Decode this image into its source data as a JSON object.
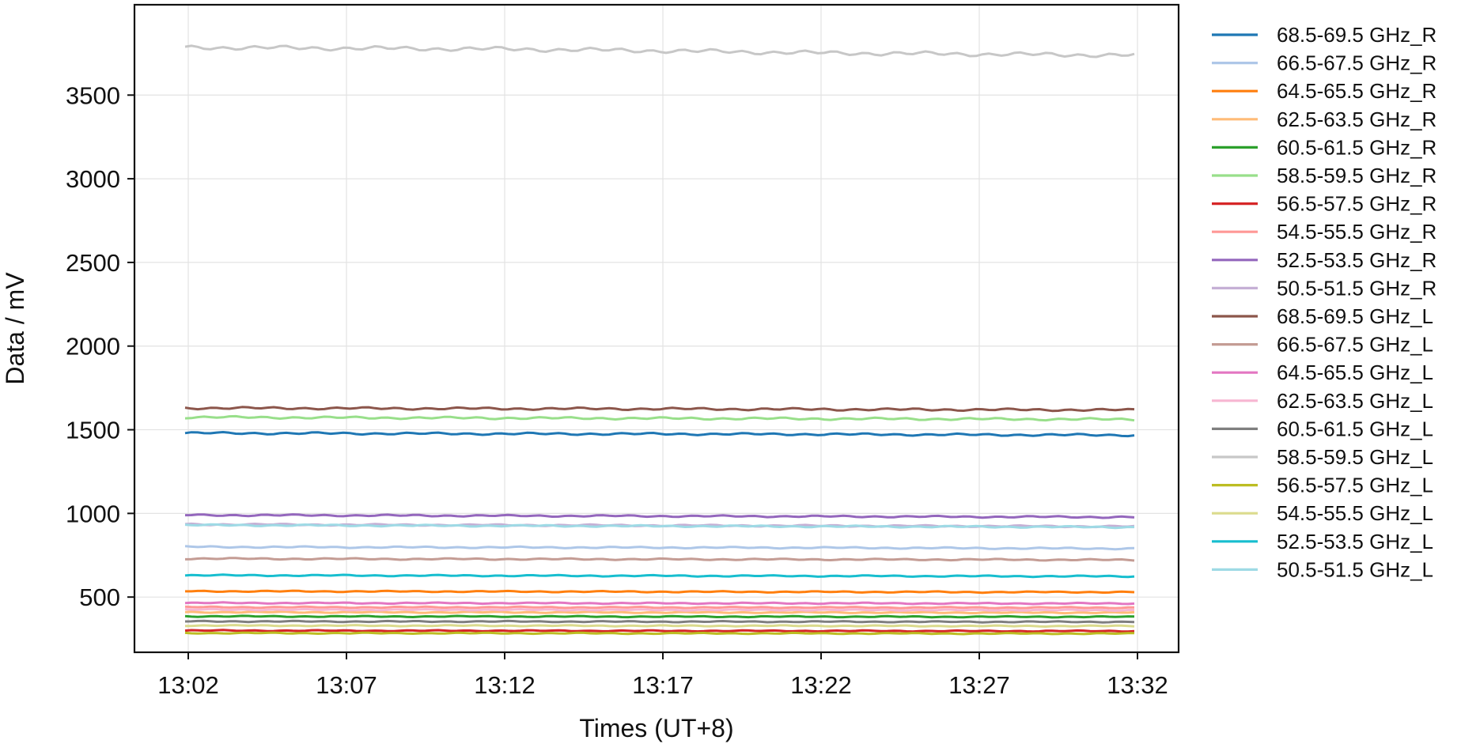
{
  "chart_data": {
    "type": "line",
    "xlabel": "Times (UT+8)",
    "ylabel": "Data / mV",
    "x_ticks": [
      "13:02",
      "13:07",
      "13:12",
      "13:17",
      "13:22",
      "13:27",
      "13:32"
    ],
    "x_tick_minutes": [
      0,
      5,
      10,
      15,
      20,
      25,
      30
    ],
    "x_range_minutes": [
      -1.7,
      31.3
    ],
    "x_data_range_minutes": [
      -0.1,
      29.9
    ],
    "y_ticks": [
      500,
      1000,
      1500,
      2000,
      2500,
      3000,
      3500
    ],
    "ylim": [
      170,
      4040
    ],
    "grid": true,
    "legend_position": "outside-right",
    "series": [
      {
        "name": "68.5-69.5 GHz_R",
        "color": "#1f77b4",
        "x": [
          0,
          5,
          10,
          15,
          20,
          25,
          30
        ],
        "values": [
          1480,
          1478,
          1476,
          1475,
          1473,
          1470,
          1468
        ]
      },
      {
        "name": "66.5-67.5 GHz_R",
        "color": "#aec7e8",
        "x": [
          0,
          5,
          10,
          15,
          20,
          25,
          30
        ],
        "values": [
          800,
          798,
          797,
          796,
          795,
          792,
          790
        ]
      },
      {
        "name": "64.5-65.5 GHz_R",
        "color": "#ff7f0e",
        "x": [
          0,
          5,
          10,
          15,
          20,
          25,
          30
        ],
        "values": [
          535,
          534,
          533,
          532,
          531,
          530,
          530
        ]
      },
      {
        "name": "62.5-63.5 GHz_R",
        "color": "#ffbb78",
        "x": [
          0,
          5,
          10,
          15,
          20,
          25,
          30
        ],
        "values": [
          410,
          409,
          409,
          408,
          408,
          407,
          407
        ]
      },
      {
        "name": "60.5-61.5 GHz_R",
        "color": "#2ca02c",
        "x": [
          0,
          5,
          10,
          15,
          20,
          25,
          30
        ],
        "values": [
          385,
          384,
          384,
          383,
          383,
          382,
          382
        ]
      },
      {
        "name": "58.5-59.5 GHz_R",
        "color": "#98df8a",
        "x": [
          0,
          5,
          10,
          15,
          20,
          25,
          30
        ],
        "values": [
          1575,
          1572,
          1570,
          1568,
          1566,
          1564,
          1562
        ]
      },
      {
        "name": "56.5-57.5 GHz_R",
        "color": "#d62728",
        "x": [
          0,
          5,
          10,
          15,
          20,
          25,
          30
        ],
        "values": [
          300,
          299,
          299,
          298,
          298,
          297,
          297
        ]
      },
      {
        "name": "54.5-55.5 GHz_R",
        "color": "#ff9896",
        "x": [
          0,
          5,
          10,
          15,
          20,
          25,
          30
        ],
        "values": [
          440,
          439,
          439,
          438,
          438,
          437,
          437
        ]
      },
      {
        "name": "52.5-53.5 GHz_R",
        "color": "#9467bd",
        "x": [
          0,
          5,
          10,
          15,
          20,
          25,
          30
        ],
        "values": [
          990,
          988,
          986,
          984,
          982,
          980,
          978
        ]
      },
      {
        "name": "50.5-51.5 GHz_R",
        "color": "#c5b0d5",
        "x": [
          0,
          5,
          10,
          15,
          20,
          25,
          30
        ],
        "values": [
          935,
          932,
          930,
          928,
          926,
          924,
          922
        ]
      },
      {
        "name": "68.5-69.5 GHz_L",
        "color": "#8c564b",
        "x": [
          0,
          5,
          10,
          15,
          20,
          25,
          30
        ],
        "values": [
          1630,
          1628,
          1626,
          1625,
          1622,
          1620,
          1618
        ]
      },
      {
        "name": "66.5-67.5 GHz_L",
        "color": "#c49c94",
        "x": [
          0,
          5,
          10,
          15,
          20,
          25,
          30
        ],
        "values": [
          730,
          728,
          727,
          726,
          725,
          724,
          722
        ]
      },
      {
        "name": "64.5-65.5 GHz_L",
        "color": "#e377c2",
        "x": [
          0,
          5,
          10,
          15,
          20,
          25,
          30
        ],
        "values": [
          465,
          464,
          464,
          463,
          463,
          462,
          462
        ]
      },
      {
        "name": "62.5-63.5 GHz_L",
        "color": "#f7b6d2",
        "x": [
          0,
          5,
          10,
          15,
          20,
          25,
          30
        ],
        "values": [
          425,
          424,
          424,
          423,
          423,
          422,
          422
        ]
      },
      {
        "name": "60.5-61.5 GHz_L",
        "color": "#7f7f7f",
        "x": [
          0,
          5,
          10,
          15,
          20,
          25,
          30
        ],
        "values": [
          355,
          354,
          354,
          353,
          353,
          352,
          352
        ]
      },
      {
        "name": "58.5-59.5 GHz_L",
        "color": "#c7c7c7",
        "x": [
          0,
          5,
          10,
          15,
          20,
          25,
          30
        ],
        "values": [
          3785,
          3780,
          3775,
          3765,
          3752,
          3745,
          3738
        ]
      },
      {
        "name": "56.5-57.5 GHz_L",
        "color": "#bcbd22",
        "x": [
          0,
          5,
          10,
          15,
          20,
          25,
          30
        ],
        "values": [
          285,
          284,
          284,
          283,
          283,
          282,
          282
        ]
      },
      {
        "name": "54.5-55.5 GHz_L",
        "color": "#dbdb8d",
        "x": [
          0,
          5,
          10,
          15,
          20,
          25,
          30
        ],
        "values": [
          330,
          329,
          329,
          328,
          328,
          327,
          327
        ]
      },
      {
        "name": "52.5-53.5 GHz_L",
        "color": "#17becf",
        "x": [
          0,
          5,
          10,
          15,
          20,
          25,
          30
        ],
        "values": [
          630,
          629,
          628,
          627,
          626,
          625,
          624
        ]
      },
      {
        "name": "50.5-51.5 GHz_L",
        "color": "#9edae5",
        "x": [
          0,
          5,
          10,
          15,
          20,
          25,
          30
        ],
        "values": [
          930,
          928,
          926,
          924,
          922,
          920,
          918
        ]
      }
    ]
  }
}
